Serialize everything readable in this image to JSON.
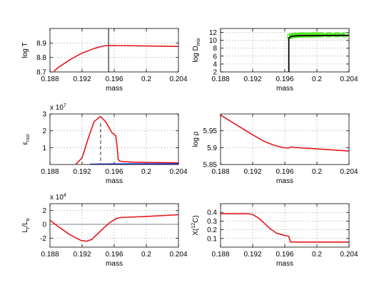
{
  "colors": {
    "red": "#e6161c",
    "blue": "#1c2fd6",
    "green": "#4ce61c",
    "black": "#000000",
    "gray": "#7f7f7f",
    "dashgray": "#808080"
  },
  "chart_data": [
    {
      "id": "logT",
      "type": "line",
      "xlabel": "mass",
      "ylabel": "log T",
      "xlim": [
        0.188,
        0.204
      ],
      "ylim": [
        8.7,
        9.0
      ],
      "xticks": [
        "0.188",
        "0.192",
        "0.196",
        "0.2",
        "0.204"
      ],
      "yticks": [
        "8.7",
        "8.8",
        "8.9"
      ],
      "grid": true,
      "vline": 0.1953,
      "series": [
        {
          "color": "red",
          "x": [
            0.1885,
            0.189,
            0.1905,
            0.192,
            0.1935,
            0.1945,
            0.195,
            0.1953,
            0.1965,
            0.198,
            0.2,
            0.204
          ],
          "y": [
            8.705,
            8.73,
            8.785,
            8.83,
            8.862,
            8.877,
            8.882,
            8.883,
            8.882,
            8.881,
            8.879,
            8.876
          ]
        }
      ]
    },
    {
      "id": "logDmix",
      "type": "line",
      "xlabel": "mass",
      "ylabel": "log D",
      "ylabel_sub": "mix",
      "xlim": [
        0.188,
        0.204
      ],
      "ylim": [
        2,
        13
      ],
      "xticks": [
        "0.188",
        "0.192",
        "0.196",
        "0.2",
        "0.204"
      ],
      "yticks": [
        "2",
        "4",
        "6",
        "8",
        "10",
        "12"
      ],
      "grid": true,
      "series": [
        {
          "color": "green",
          "marker": "square",
          "x": [
            0.1966,
            0.1968,
            0.197,
            0.1972,
            0.1975,
            0.1978,
            0.1981,
            0.1984,
            0.1987,
            0.199,
            0.1993,
            0.1996,
            0.1999,
            0.2005,
            0.2015,
            0.2025,
            0.2035
          ],
          "y": [
            11.0,
            11.1,
            11.2,
            11.25,
            11.3,
            11.3,
            11.35,
            11.35,
            11.35,
            11.35,
            11.35,
            11.4,
            11.4,
            11.4,
            11.4,
            11.4,
            11.4
          ]
        },
        {
          "color": "black",
          "x": [
            0.1965,
            0.1965,
            0.1968,
            0.1972,
            0.198,
            0.199,
            0.204
          ],
          "y": [
            2,
            10.6,
            11.0,
            11.1,
            11.2,
            11.2,
            11.25
          ]
        }
      ]
    },
    {
      "id": "eps_nuc",
      "type": "line",
      "xlabel": "mass",
      "ylabel": "ε",
      "ylabel_sub": "nuc",
      "exponent": "x 10",
      "exponent_power": "7",
      "xlim": [
        0.188,
        0.204
      ],
      "ylim": [
        0,
        3
      ],
      "xticks": [
        "0.188",
        "0.192",
        "0.196",
        "0.2",
        "0.204"
      ],
      "yticks": [
        "1",
        "2",
        "3"
      ],
      "grid": true,
      "dashed_vline": {
        "x": 0.1943,
        "y_top": 2.45
      },
      "series": [
        {
          "color": "red",
          "x": [
            0.1912,
            0.192,
            0.1928,
            0.1935,
            0.1943,
            0.195,
            0.1957,
            0.1962,
            0.1964,
            0.1965,
            0.1967,
            0.1972,
            0.1985,
            0.204
          ],
          "y": [
            0.0,
            0.4,
            1.6,
            2.55,
            2.85,
            2.5,
            1.9,
            1.7,
            0.9,
            0.3,
            0.2,
            0.17,
            0.14,
            0.1
          ]
        },
        {
          "color": "blue",
          "x": [
            0.193,
            0.196,
            0.2,
            0.204
          ],
          "y": [
            0.02,
            0.035,
            0.04,
            0.045
          ]
        }
      ]
    },
    {
      "id": "logrho",
      "type": "line",
      "xlabel": "mass",
      "ylabel": "log ρ",
      "xlim": [
        0.188,
        0.204
      ],
      "ylim": [
        5.85,
        6.0
      ],
      "xticks": [
        "0.188",
        "0.192",
        "0.196",
        "0.2",
        "0.204"
      ],
      "yticks": [
        "5.85",
        "5.9",
        "5.95"
      ],
      "grid": true,
      "series": [
        {
          "color": "red",
          "x": [
            0.188,
            0.189,
            0.1905,
            0.192,
            0.1935,
            0.1948,
            0.1958,
            0.1965,
            0.1966,
            0.1968,
            0.1975,
            0.199,
            0.2015,
            0.204
          ],
          "y": [
            5.997,
            5.982,
            5.96,
            5.938,
            5.918,
            5.906,
            5.9,
            5.899,
            5.9,
            5.902,
            5.9,
            5.898,
            5.894,
            5.89
          ]
        }
      ]
    },
    {
      "id": "lum",
      "type": "line",
      "xlabel": "mass",
      "ylabel": "L",
      "ylabel_sub1": "r",
      "ylabel_mid": "/L",
      "ylabel_sub2": "α",
      "exponent": "x 10",
      "exponent_power": "4",
      "xlim": [
        0.188,
        0.204
      ],
      "ylim": [
        -3.3,
        3
      ],
      "xticks": [
        "0.188",
        "0.192",
        "0.196",
        "0.2",
        "0.204"
      ],
      "yticks": [
        "-2",
        "0",
        "2"
      ],
      "grid": true,
      "hline": 0,
      "series": [
        {
          "color": "red",
          "x": [
            0.188,
            0.189,
            0.1905,
            0.1918,
            0.1925,
            0.1932,
            0.194,
            0.1948,
            0.1955,
            0.1962,
            0.1966,
            0.1968,
            0.198,
            0.2,
            0.204
          ],
          "y": [
            0.6,
            -0.3,
            -1.5,
            -2.3,
            -2.45,
            -2.2,
            -1.3,
            -0.4,
            0.3,
            0.8,
            0.95,
            1.0,
            1.05,
            1.15,
            1.4
          ]
        }
      ]
    },
    {
      "id": "xc12",
      "type": "line",
      "xlabel": "mass",
      "ylabel": "X(",
      "ylabel_sup": "12",
      "ylabel_end": "C)",
      "xlim": [
        0.188,
        0.204
      ],
      "ylim": [
        0.0,
        0.5
      ],
      "xticks": [
        "0.188",
        "0.192",
        "0.196",
        "0.2",
        "0.204"
      ],
      "yticks": [
        "0.1",
        "0.2",
        "0.3",
        "0.4"
      ],
      "grid": true,
      "series": [
        {
          "color": "red",
          "x": [
            0.188,
            0.19,
            0.1915,
            0.192,
            0.1928,
            0.1935,
            0.1942,
            0.195,
            0.1958,
            0.1962,
            0.1965,
            0.1966,
            0.1967,
            0.1975,
            0.204
          ],
          "y": [
            0.385,
            0.385,
            0.384,
            0.375,
            0.33,
            0.27,
            0.21,
            0.16,
            0.14,
            0.13,
            0.125,
            0.09,
            0.06,
            0.058,
            0.058
          ]
        }
      ]
    }
  ]
}
